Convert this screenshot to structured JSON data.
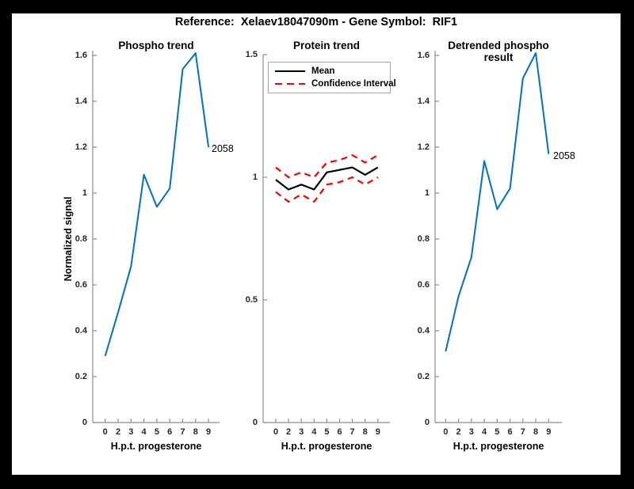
{
  "figure_title": "Reference:  Xelaev18047090m - Gene Symbol:  RIF1",
  "colors": {
    "page_background": "#000000",
    "figure_background": "#ffffff",
    "blue_line": "#0072bd",
    "mean_line": "#000000",
    "ci_line": "#ff0000",
    "axis_line": "#8c8c8c",
    "tick_text": "#262626"
  },
  "chart_data": [
    {
      "type": "line",
      "title": "Phospho trend",
      "xlabel": "H.p.t. progesterone",
      "ylabel": "Normalized signal",
      "x_ticklabels": [
        "0",
        "2",
        "3",
        "4",
        "5",
        "6",
        "7",
        "8",
        "9"
      ],
      "ytick_values": [
        0,
        0.2,
        0.4,
        0.6,
        0.8,
        1,
        1.2,
        1.4,
        1.6
      ],
      "ytick_labels": [
        "0",
        "0.2",
        "0.4",
        "0.6",
        "0.8",
        "1",
        "1.2",
        "1.4",
        "1.6"
      ],
      "ylim": [
        0,
        1.62
      ],
      "grid": false,
      "annotation": "2058",
      "series": [
        {
          "name": "phospho-signal",
          "color": "#0072bd",
          "style": "solid",
          "width": 2,
          "values": [
            0.29,
            0.48,
            0.68,
            1.08,
            0.94,
            1.02,
            1.54,
            1.61,
            1.2
          ]
        }
      ]
    },
    {
      "type": "line",
      "title": "Protein trend",
      "xlabel": "H.p.t. progesterone",
      "ylabel": "",
      "x_ticklabels": [
        "0",
        "2",
        "3",
        "4",
        "5",
        "6",
        "7",
        "8",
        "9"
      ],
      "ytick_values": [
        0,
        0.5,
        1,
        1.5
      ],
      "ytick_labels": [
        "0",
        "0.5",
        "1",
        "1.5"
      ],
      "ylim": [
        0,
        1.5
      ],
      "grid": false,
      "legend_position": "northwest",
      "legend": [
        {
          "label": "Mean",
          "color": "#000000",
          "style": "solid"
        },
        {
          "label": "Confidence Interval",
          "color": "#ff0000",
          "style": "dashed"
        }
      ],
      "series": [
        {
          "name": "ci-upper",
          "color": "#ff0000",
          "style": "dashed",
          "width": 2.2,
          "values": [
            1.04,
            1.0,
            1.02,
            1.0,
            1.06,
            1.07,
            1.09,
            1.06,
            1.09
          ]
        },
        {
          "name": "ci-lower",
          "color": "#ff0000",
          "style": "dashed",
          "width": 2.2,
          "values": [
            0.94,
            0.9,
            0.93,
            0.9,
            0.97,
            0.98,
            1.0,
            0.97,
            1.0
          ]
        },
        {
          "name": "mean",
          "color": "#000000",
          "style": "solid",
          "width": 2.2,
          "values": [
            0.99,
            0.95,
            0.97,
            0.95,
            1.02,
            1.03,
            1.04,
            1.01,
            1.04
          ]
        }
      ]
    },
    {
      "type": "line",
      "title": "Detrended phospho result",
      "xlabel": "H.p.t. progesterone",
      "ylabel": "",
      "x_ticklabels": [
        "0",
        "2",
        "3",
        "4",
        "5",
        "6",
        "7",
        "8",
        "9"
      ],
      "ytick_values": [
        0,
        0.2,
        0.4,
        0.6,
        0.8,
        1,
        1.2,
        1.4,
        1.6
      ],
      "ytick_labels": [
        "0",
        "0.2",
        "0.4",
        "0.6",
        "0.8",
        "1",
        "1.2",
        "1.4",
        "1.6"
      ],
      "ylim": [
        0,
        1.62
      ],
      "grid": false,
      "annotation": "2058",
      "series": [
        {
          "name": "detrended-signal",
          "color": "#0072bd",
          "style": "solid",
          "width": 2,
          "values": [
            0.31,
            0.55,
            0.72,
            1.14,
            0.93,
            1.02,
            1.5,
            1.61,
            1.17
          ]
        }
      ]
    }
  ]
}
